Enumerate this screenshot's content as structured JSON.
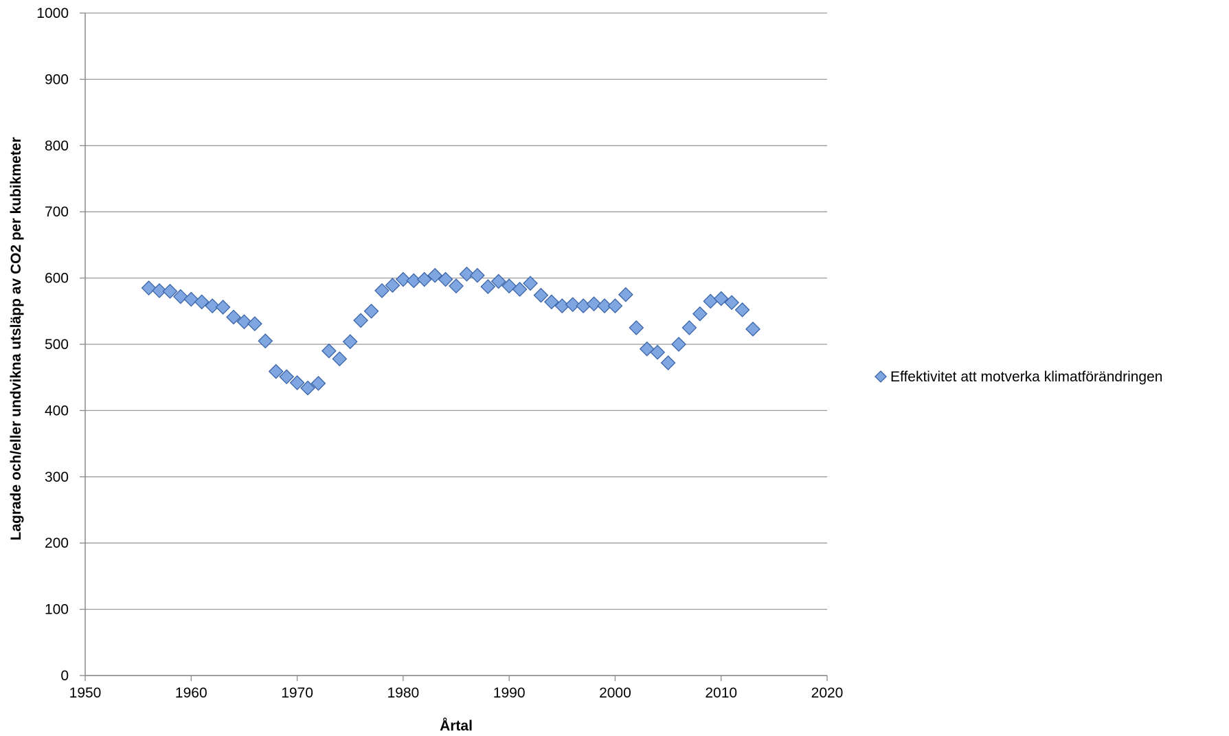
{
  "chart_data": {
    "type": "scatter",
    "title": "",
    "xlabel": "Årtal",
    "ylabel": "Lagrade och/eller undvikna utsläpp av CO2 per kubikmeter",
    "xlim": [
      1950,
      2020
    ],
    "ylim": [
      0,
      1000
    ],
    "x_ticks": [
      "1950",
      "1960",
      "1970",
      "1980",
      "1990",
      "2000",
      "2010",
      "2020"
    ],
    "y_ticks": [
      "0",
      "100",
      "200",
      "300",
      "400",
      "500",
      "600",
      "700",
      "800",
      "900",
      "1000"
    ],
    "grid": "horizontal",
    "legend_position": "right",
    "marker": "diamond",
    "colors": {
      "marker_fill": "#7FA6E0",
      "marker_stroke": "#3A64A8",
      "grid": "#999999",
      "axis": "#888888"
    },
    "series": [
      {
        "name": "Effektivitet att motverka klimatförändringen",
        "points": [
          [
            1956,
            585
          ],
          [
            1957,
            581
          ],
          [
            1958,
            580
          ],
          [
            1959,
            572
          ],
          [
            1960,
            568
          ],
          [
            1961,
            564
          ],
          [
            1962,
            558
          ],
          [
            1963,
            556
          ],
          [
            1964,
            541
          ],
          [
            1965,
            534
          ],
          [
            1966,
            531
          ],
          [
            1967,
            505
          ],
          [
            1968,
            459
          ],
          [
            1969,
            451
          ],
          [
            1970,
            442
          ],
          [
            1971,
            434
          ],
          [
            1972,
            441
          ],
          [
            1973,
            490
          ],
          [
            1974,
            478
          ],
          [
            1975,
            504
          ],
          [
            1976,
            536
          ],
          [
            1977,
            550
          ],
          [
            1978,
            581
          ],
          [
            1979,
            589
          ],
          [
            1980,
            598
          ],
          [
            1981,
            596
          ],
          [
            1982,
            598
          ],
          [
            1983,
            604
          ],
          [
            1984,
            598
          ],
          [
            1985,
            588
          ],
          [
            1986,
            606
          ],
          [
            1987,
            604
          ],
          [
            1988,
            587
          ],
          [
            1989,
            595
          ],
          [
            1990,
            588
          ],
          [
            1991,
            583
          ],
          [
            1992,
            592
          ],
          [
            1993,
            574
          ],
          [
            1994,
            564
          ],
          [
            1995,
            558
          ],
          [
            1996,
            560
          ],
          [
            1997,
            558
          ],
          [
            1998,
            561
          ],
          [
            1999,
            558
          ],
          [
            2000,
            558
          ],
          [
            2001,
            575
          ],
          [
            2002,
            525
          ],
          [
            2003,
            493
          ],
          [
            2004,
            488
          ],
          [
            2005,
            472
          ],
          [
            2006,
            500
          ],
          [
            2007,
            525
          ],
          [
            2008,
            546
          ],
          [
            2009,
            565
          ],
          [
            2010,
            569
          ],
          [
            2011,
            563
          ],
          [
            2012,
            552
          ],
          [
            2013,
            523
          ]
        ]
      }
    ]
  }
}
